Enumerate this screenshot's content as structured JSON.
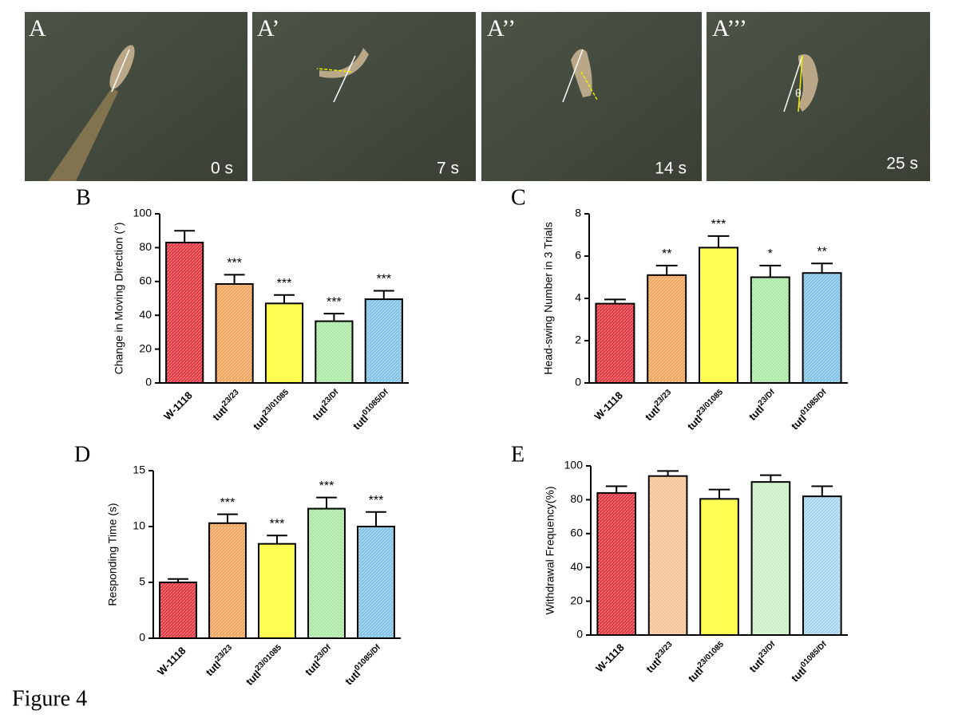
{
  "figure_label": "Figure 4",
  "photos": [
    {
      "label": "A",
      "time": "0 s"
    },
    {
      "label": "A’",
      "time": "7 s"
    },
    {
      "label": "A’’",
      "time": "14 s"
    },
    {
      "label": "A’’’",
      "time": "25 s",
      "angle_label": "θ"
    }
  ],
  "chart_data": [
    {
      "type": "bar",
      "panel": "B",
      "y_label": "Change in Moving Direction (°)",
      "categories": [
        "W-1118",
        "tutl23/23",
        "tutl23/01085",
        "tutl23/Df",
        "tutl01085/Df"
      ],
      "values": [
        83,
        58.5,
        47,
        36.5,
        49.5
      ],
      "errors": [
        7,
        5.5,
        5,
        4.5,
        5
      ],
      "significance": [
        null,
        "***",
        "***",
        "***",
        "***"
      ],
      "colors": [
        "#e8313b",
        "#f2a35a",
        "#ffff33",
        "#a9e8a2",
        "#7fc1e6"
      ],
      "ylim": [
        0,
        100
      ],
      "yticks": [
        0,
        20,
        40,
        60,
        80,
        100
      ]
    },
    {
      "type": "bar",
      "panel": "C",
      "y_label": "Head-swing Number in 3 Trials",
      "categories": [
        "W-1118",
        "tutl23/23",
        "tutl23/01085",
        "tutl23/Df",
        "tutl01085/Df"
      ],
      "values": [
        3.75,
        5.1,
        6.4,
        5.0,
        5.2
      ],
      "errors": [
        0.2,
        0.45,
        0.55,
        0.55,
        0.45
      ],
      "significance": [
        null,
        "**",
        "***",
        "*",
        "**"
      ],
      "colors": [
        "#e8313b",
        "#f2a35a",
        "#ffff33",
        "#a9e8a2",
        "#7fc1e6"
      ],
      "ylim": [
        0,
        8
      ],
      "yticks": [
        0,
        2,
        4,
        6,
        8
      ]
    },
    {
      "type": "bar",
      "panel": "D",
      "y_label": "Responding Time (s)",
      "categories": [
        "W-1118",
        "tutl23/23",
        "tutl23/01085",
        "tutl23/Df",
        "tutl01085/Df"
      ],
      "values": [
        5.0,
        10.3,
        8.45,
        11.6,
        10.0
      ],
      "errors": [
        0.3,
        0.8,
        0.75,
        1.0,
        1.3
      ],
      "significance": [
        null,
        "***",
        "***",
        "***",
        "***"
      ],
      "colors": [
        "#e8313b",
        "#f2a35a",
        "#ffff33",
        "#a9e8a2",
        "#7fc1e6"
      ],
      "ylim": [
        0,
        15
      ],
      "yticks": [
        0,
        5,
        10,
        15
      ]
    },
    {
      "type": "bar",
      "panel": "E",
      "y_label": "Withdrawal Frequency(%)",
      "categories": [
        "W-1118",
        "tutl23/23",
        "tutl23/01085",
        "tutl23/Df",
        "tutl01085/Df"
      ],
      "values": [
        84,
        94,
        80.5,
        90.5,
        82
      ],
      "errors": [
        4,
        3,
        5.5,
        4,
        6
      ],
      "significance": [
        null,
        null,
        null,
        null,
        null
      ],
      "colors": [
        "#e8313b",
        "#f5c392",
        "#ffff33",
        "#c9f0c2",
        "#a6d4ec"
      ],
      "ylim": [
        0,
        100
      ],
      "yticks": [
        0,
        20,
        40,
        60,
        80,
        100
      ]
    }
  ]
}
